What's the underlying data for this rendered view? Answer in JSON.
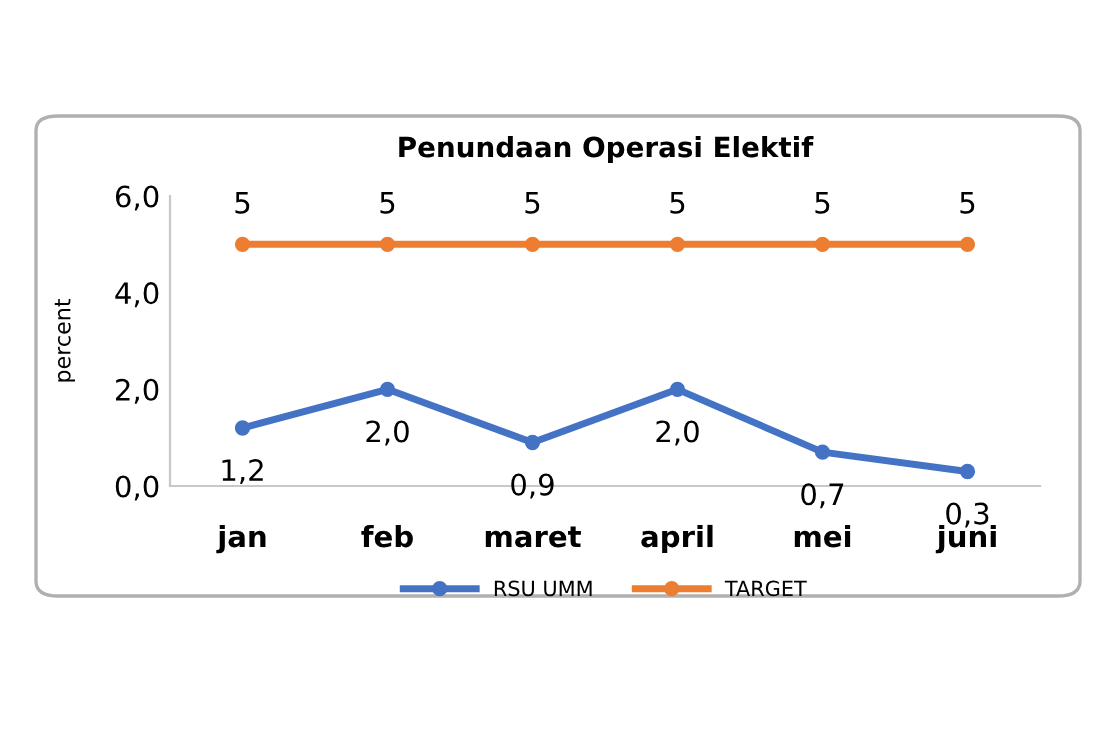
{
  "chart_data": {
    "type": "line",
    "title": "Penundaan Operasi Elektif",
    "ylabel": "percent",
    "categories": [
      "jan",
      "feb",
      "maret",
      "april",
      "mei",
      "juni"
    ],
    "series": [
      {
        "name": "RSU UMM",
        "color": "#4472c4",
        "values": [
          1.2,
          2.0,
          0.9,
          2.0,
          0.7,
          0.3
        ],
        "value_labels": [
          "1,2",
          "2,0",
          "0,9",
          "2,0",
          "0,7",
          "0,3"
        ]
      },
      {
        "name": "TARGET",
        "color": "#ed7d31",
        "values": [
          5,
          5,
          5,
          5,
          5,
          5
        ],
        "value_labels": [
          "5",
          "5",
          "5",
          "5",
          "5",
          "5"
        ]
      }
    ],
    "ylim": [
      0,
      6
    ],
    "yticks": [
      {
        "value": 0,
        "label": "0,0"
      },
      {
        "value": 2,
        "label": "2,0"
      },
      {
        "value": 4,
        "label": "4,0"
      },
      {
        "value": 6,
        "label": "6,0"
      }
    ],
    "grid": false,
    "legend": "bottom",
    "marker": "circle",
    "line_style": "solid"
  }
}
